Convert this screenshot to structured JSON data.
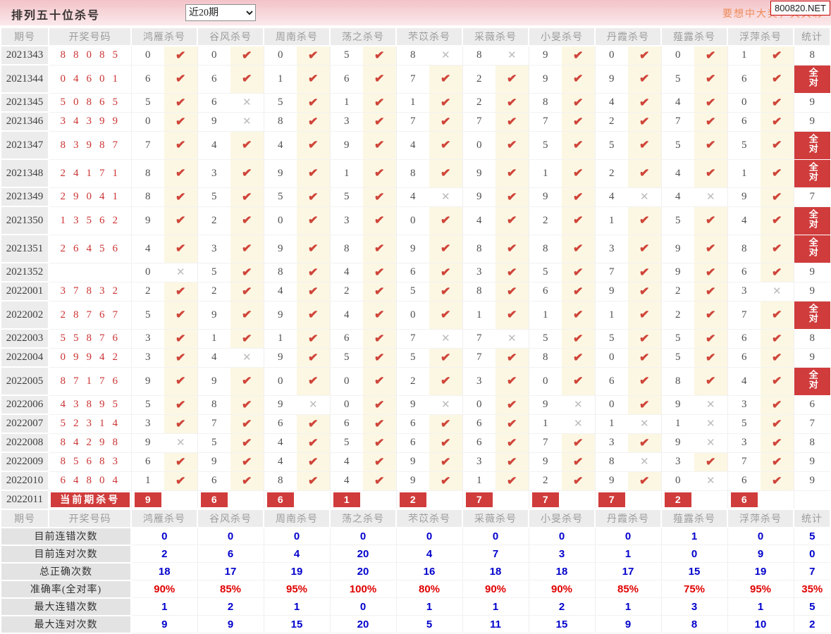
{
  "banner": {
    "title": "排列五十位杀号",
    "period_select": "近20期",
    "slogan": "要想中大奖，天天彩",
    "site_badge": "800820.NET",
    "accent_pink": "#f2c3c8",
    "badge_red": "#d03b3b"
  },
  "table": {
    "header": {
      "period": "期号",
      "numbers": "开奖号码",
      "experts": [
        "鸿雁杀号",
        "谷风杀号",
        "周南杀号",
        "荡之杀号",
        "芣苡杀号",
        "采薇杀号",
        "小旻杀号",
        "丹霞杀号",
        "薤露杀号",
        "浮萍杀号"
      ],
      "total": "统计"
    },
    "marks": {
      "correct": "✔",
      "wrong": "✕"
    },
    "all_correct_label": "全对",
    "colors": {
      "check": "#d0453a",
      "cross": "#bcbcbc",
      "stat_blue": "#0000cc",
      "stat_red": "#e00000",
      "draw_red": "#cc3333"
    },
    "rows": [
      {
        "period": "2021343",
        "numbers": "88085",
        "kills": [
          0,
          0,
          0,
          5,
          8,
          8,
          9,
          0,
          0,
          1
        ],
        "ok": [
          1,
          1,
          1,
          1,
          0,
          0,
          1,
          1,
          1,
          1
        ],
        "total": "8"
      },
      {
        "period": "2021344",
        "numbers": "04601",
        "kills": [
          6,
          6,
          1,
          6,
          7,
          2,
          9,
          9,
          5,
          6
        ],
        "ok": [
          1,
          1,
          1,
          1,
          1,
          1,
          1,
          1,
          1,
          1
        ],
        "total": "全对"
      },
      {
        "period": "2021345",
        "numbers": "50865",
        "kills": [
          5,
          6,
          5,
          1,
          1,
          2,
          8,
          4,
          4,
          0
        ],
        "ok": [
          1,
          0,
          1,
          1,
          1,
          1,
          1,
          1,
          1,
          1
        ],
        "total": "9"
      },
      {
        "period": "2021346",
        "numbers": "34399",
        "kills": [
          0,
          9,
          8,
          3,
          7,
          7,
          7,
          2,
          7,
          6
        ],
        "ok": [
          1,
          0,
          1,
          1,
          1,
          1,
          1,
          1,
          1,
          1
        ],
        "total": "9"
      },
      {
        "period": "2021347",
        "numbers": "83987",
        "kills": [
          7,
          4,
          4,
          9,
          4,
          0,
          5,
          5,
          5,
          5
        ],
        "ok": [
          1,
          1,
          1,
          1,
          1,
          1,
          1,
          1,
          1,
          1
        ],
        "total": "全对"
      },
      {
        "period": "2021348",
        "numbers": "24171",
        "kills": [
          8,
          3,
          9,
          1,
          8,
          9,
          1,
          2,
          4,
          1
        ],
        "ok": [
          1,
          1,
          1,
          1,
          1,
          1,
          1,
          1,
          1,
          1
        ],
        "total": "全对"
      },
      {
        "period": "2021349",
        "numbers": "29041",
        "kills": [
          8,
          5,
          5,
          5,
          4,
          9,
          9,
          4,
          4,
          9
        ],
        "ok": [
          1,
          1,
          1,
          1,
          0,
          1,
          1,
          0,
          0,
          1
        ],
        "total": "7"
      },
      {
        "period": "2021350",
        "numbers": "13562",
        "kills": [
          9,
          2,
          0,
          3,
          0,
          4,
          2,
          1,
          5,
          4
        ],
        "ok": [
          1,
          1,
          1,
          1,
          1,
          1,
          1,
          1,
          1,
          1
        ],
        "total": "全对"
      },
      {
        "period": "2021351",
        "numbers": "26456",
        "kills": [
          4,
          3,
          9,
          8,
          9,
          8,
          8,
          3,
          9,
          8
        ],
        "ok": [
          1,
          1,
          1,
          1,
          1,
          1,
          1,
          1,
          1,
          1
        ],
        "total": "全对"
      },
      {
        "period": "2021352",
        "numbers": "",
        "kills": [
          0,
          5,
          8,
          4,
          6,
          3,
          5,
          7,
          9,
          6
        ],
        "ok": [
          0,
          1,
          1,
          1,
          1,
          1,
          1,
          1,
          1,
          1
        ],
        "total": "9"
      },
      {
        "period": "2022001",
        "numbers": "37832",
        "kills": [
          2,
          2,
          4,
          2,
          5,
          8,
          6,
          9,
          2,
          3
        ],
        "ok": [
          1,
          1,
          1,
          1,
          1,
          1,
          1,
          1,
          1,
          0
        ],
        "total": "9"
      },
      {
        "period": "2022002",
        "numbers": "28767",
        "kills": [
          5,
          9,
          9,
          4,
          0,
          1,
          1,
          1,
          2,
          7
        ],
        "ok": [
          1,
          1,
          1,
          1,
          1,
          1,
          1,
          1,
          1,
          1
        ],
        "total": "全对"
      },
      {
        "period": "2022003",
        "numbers": "55876",
        "kills": [
          3,
          1,
          1,
          6,
          7,
          7,
          5,
          5,
          5,
          6
        ],
        "ok": [
          1,
          1,
          1,
          1,
          0,
          0,
          1,
          1,
          1,
          1
        ],
        "total": "8"
      },
      {
        "period": "2022004",
        "numbers": "09942",
        "kills": [
          3,
          4,
          9,
          5,
          5,
          7,
          8,
          0,
          5,
          6
        ],
        "ok": [
          1,
          0,
          1,
          1,
          1,
          1,
          1,
          1,
          1,
          1
        ],
        "total": "9"
      },
      {
        "period": "2022005",
        "numbers": "87176",
        "kills": [
          9,
          9,
          0,
          0,
          2,
          3,
          0,
          6,
          8,
          4
        ],
        "ok": [
          1,
          1,
          1,
          1,
          1,
          1,
          1,
          1,
          1,
          1
        ],
        "total": "全对"
      },
      {
        "period": "2022006",
        "numbers": "43895",
        "kills": [
          5,
          8,
          9,
          0,
          9,
          0,
          9,
          0,
          9,
          3
        ],
        "ok": [
          1,
          1,
          0,
          1,
          0,
          1,
          0,
          1,
          0,
          1
        ],
        "total": "6"
      },
      {
        "period": "2022007",
        "numbers": "52314",
        "kills": [
          3,
          7,
          6,
          6,
          6,
          6,
          1,
          1,
          1,
          5
        ],
        "ok": [
          1,
          1,
          1,
          1,
          1,
          1,
          0,
          0,
          0,
          1
        ],
        "total": "7"
      },
      {
        "period": "2022008",
        "numbers": "84298",
        "kills": [
          9,
          5,
          4,
          5,
          6,
          6,
          7,
          3,
          9,
          3
        ],
        "ok": [
          0,
          1,
          1,
          1,
          1,
          1,
          1,
          1,
          0,
          1
        ],
        "total": "8"
      },
      {
        "period": "2022009",
        "numbers": "85683",
        "kills": [
          6,
          9,
          4,
          4,
          9,
          3,
          9,
          8,
          3,
          7
        ],
        "ok": [
          1,
          1,
          1,
          1,
          1,
          1,
          1,
          0,
          1,
          1
        ],
        "total": "9"
      },
      {
        "period": "2022010",
        "numbers": "64804",
        "kills": [
          1,
          6,
          8,
          4,
          9,
          1,
          2,
          9,
          0,
          6
        ],
        "ok": [
          1,
          1,
          1,
          1,
          1,
          1,
          1,
          1,
          0,
          1
        ],
        "total": "9"
      }
    ],
    "current": {
      "period": "2022011",
      "label": "当前期杀号",
      "kills": [
        9,
        6,
        6,
        1,
        2,
        7,
        7,
        7,
        2,
        6
      ]
    },
    "summary": [
      {
        "label": "目前连错次数",
        "values": [
          "0",
          "0",
          "0",
          "0",
          "0",
          "0",
          "0",
          "0",
          "1",
          "0"
        ],
        "total": "5",
        "style": "blue"
      },
      {
        "label": "目前连对次数",
        "values": [
          "2",
          "6",
          "4",
          "20",
          "4",
          "7",
          "3",
          "1",
          "0",
          "9"
        ],
        "total": "0",
        "style": "blue"
      },
      {
        "label": "总正确次数",
        "values": [
          "18",
          "17",
          "19",
          "20",
          "16",
          "18",
          "18",
          "17",
          "15",
          "19"
        ],
        "total": "7",
        "style": "blue"
      },
      {
        "label": "准确率(全对率)",
        "values": [
          "90%",
          "85%",
          "95%",
          "100%",
          "80%",
          "90%",
          "90%",
          "85%",
          "75%",
          "95%"
        ],
        "total": "35%",
        "style": "red"
      },
      {
        "label": "最大连错次数",
        "values": [
          "1",
          "2",
          "1",
          "0",
          "1",
          "1",
          "2",
          "1",
          "3",
          "1"
        ],
        "total": "5",
        "style": "blue"
      },
      {
        "label": "最大连对次数",
        "values": [
          "9",
          "9",
          "15",
          "20",
          "5",
          "11",
          "15",
          "9",
          "8",
          "10"
        ],
        "total": "2",
        "style": "blue"
      }
    ]
  }
}
